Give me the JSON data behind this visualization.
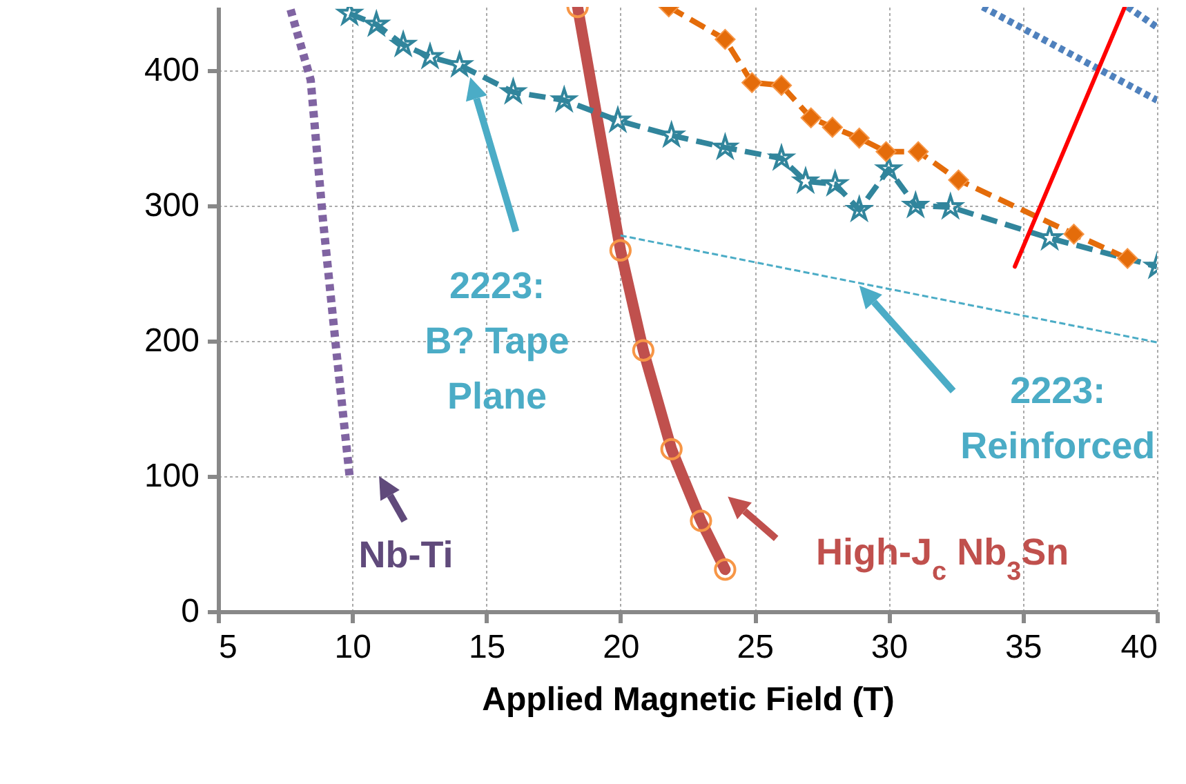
{
  "chart_data": {
    "type": "line",
    "xlabel": "Applied Magnetic Field (T)",
    "xlim": [
      5,
      40
    ],
    "xticks": [
      5,
      10,
      15,
      20,
      25,
      30,
      35,
      40
    ],
    "ylim": [
      0,
      447
    ],
    "yticks": [
      0,
      100,
      200,
      300,
      400
    ],
    "grid": true,
    "series": [
      {
        "color": "#8064a2",
        "marker": "none",
        "line_style": "dotted",
        "x": [
          7.7,
          8.45,
          8.9,
          9.4,
          9.9
        ],
        "values": [
          445,
          393,
          291,
          194,
          100
        ]
      },
      {
        "color": "#c0504d",
        "marker": "circle",
        "line_style": "solid",
        "x": [
          18.4,
          20,
          20.85,
          21.9,
          23,
          23.9
        ],
        "values": [
          447,
          267,
          193,
          120,
          67,
          31
        ]
      },
      {
        "color": "#31859c",
        "marker": "star",
        "line_style": "dashed",
        "x": [
          9.9,
          10.9,
          11.9,
          12.9,
          14,
          16,
          17.9,
          19.9,
          21.9,
          23.9,
          26,
          26.9,
          28,
          28.9,
          30,
          31,
          32.3,
          36,
          40
        ],
        "values": [
          442,
          434,
          419,
          410,
          404,
          384,
          378,
          363,
          352,
          343,
          335,
          318,
          316,
          297,
          327,
          300,
          299,
          276,
          255
        ]
      },
      {
        "color": "#e46c0a",
        "marker": "diamond",
        "line_style": "dashed",
        "x": [
          21.8,
          23.9,
          24.9,
          26,
          27.1,
          27.9,
          28.9,
          29.9,
          31.1,
          32.6,
          36.9,
          38.9
        ],
        "values": [
          447,
          423,
          391,
          389,
          365,
          358,
          350,
          340,
          340,
          319,
          279,
          261
        ]
      },
      {
        "color": "#4f81bd",
        "marker": "none",
        "line_style": "dotted",
        "x": [
          33.5,
          40
        ],
        "values": [
          447,
          378
        ]
      },
      {
        "color": "#4f81bd",
        "marker": "none",
        "line_style": "dotted",
        "x": [
          38.9,
          40
        ],
        "values": [
          447,
          432
        ]
      },
      {
        "color": "#ff0000",
        "marker": "none",
        "line_style": "solid",
        "x": [
          34.7,
          38.8
        ],
        "values": [
          255,
          447
        ]
      },
      {
        "color": "#4bacc6",
        "marker": "none",
        "line_style": "dashed",
        "x": [
          20,
          40
        ],
        "values": [
          278,
          199
        ]
      }
    ],
    "annotations": [
      "2223:\nB? Tape\nPlane",
      "2223:\nReinforced",
      "Nb-Ti",
      "High-J$_{c}$ Nb$_{3}$Sn"
    ]
  }
}
